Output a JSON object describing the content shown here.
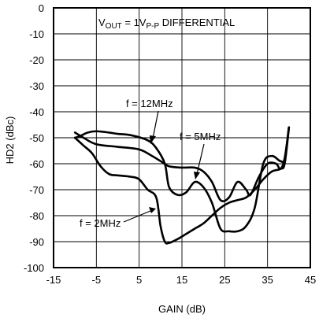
{
  "chart_data": {
    "type": "line",
    "title": "",
    "xlabel": "GAIN (dB)",
    "ylabel": "HD2 (dBc)",
    "xlim": [
      -15,
      45
    ],
    "ylim": [
      -100,
      0
    ],
    "xticks": [
      -15,
      -5,
      5,
      15,
      25,
      35,
      45
    ],
    "yticks": [
      0,
      -10,
      -20,
      -30,
      -40,
      -50,
      -60,
      -70,
      -80,
      -90,
      -100
    ],
    "grid": true,
    "header_annotation": {
      "prefix": "V",
      "subscript1": "OUT",
      "middle": " = 1V",
      "subscript2": "P-P",
      "suffix": " DIFFERENTIAL"
    },
    "series": [
      {
        "name": "f = 12MHz",
        "x": [
          -10,
          -8,
          -5,
          0,
          5,
          8,
          10,
          12,
          15,
          18,
          20,
          22,
          24,
          26,
          28,
          30,
          31,
          33,
          35,
          37,
          38,
          39,
          40
        ],
        "y": [
          -48,
          -50,
          -52.5,
          -53.5,
          -54.5,
          -57,
          -59,
          -61,
          -61.5,
          -61.5,
          -63,
          -67,
          -74,
          -73,
          -67,
          -70,
          -72,
          -65,
          -60,
          -60,
          -62,
          -58,
          -46
        ]
      },
      {
        "name": "f = 5MHz",
        "x": [
          -10,
          -9,
          -7,
          -5,
          -2,
          0,
          3,
          7,
          9,
          11,
          12,
          14,
          16,
          18,
          20,
          22,
          24,
          26,
          28,
          30,
          32,
          34,
          36,
          38,
          39,
          40
        ],
        "y": [
          -50,
          -49.5,
          -48,
          -47.5,
          -48,
          -48.5,
          -49,
          -51,
          -54,
          -60,
          -69,
          -72,
          -71,
          -67,
          -69,
          -75,
          -85,
          -86,
          -86,
          -84,
          -77,
          -60,
          -57,
          -59,
          -58,
          -46
        ]
      },
      {
        "name": "f = 2MHz",
        "x": [
          -10,
          -8,
          -6,
          -4,
          -2,
          0,
          3,
          5,
          7,
          9,
          10,
          11,
          12,
          14,
          16,
          18,
          20,
          22,
          24,
          26,
          28,
          30,
          32,
          34,
          36,
          38,
          39,
          40
        ],
        "y": [
          -50,
          -53,
          -56,
          -61,
          -64,
          -64.5,
          -65,
          -66,
          -70,
          -73,
          -84,
          -90,
          -90.5,
          -89,
          -87,
          -85,
          -83,
          -80,
          -77,
          -75,
          -74,
          -73,
          -70,
          -66,
          -63,
          -62,
          -60,
          -46
        ]
      }
    ],
    "labels": [
      {
        "series": "f = 12MHz",
        "text": "f = 12MHz"
      },
      {
        "series": "f = 5MHz",
        "text": "f = 5MHz"
      },
      {
        "series": "f = 2MHz",
        "text": "f = 2MHz"
      }
    ]
  }
}
